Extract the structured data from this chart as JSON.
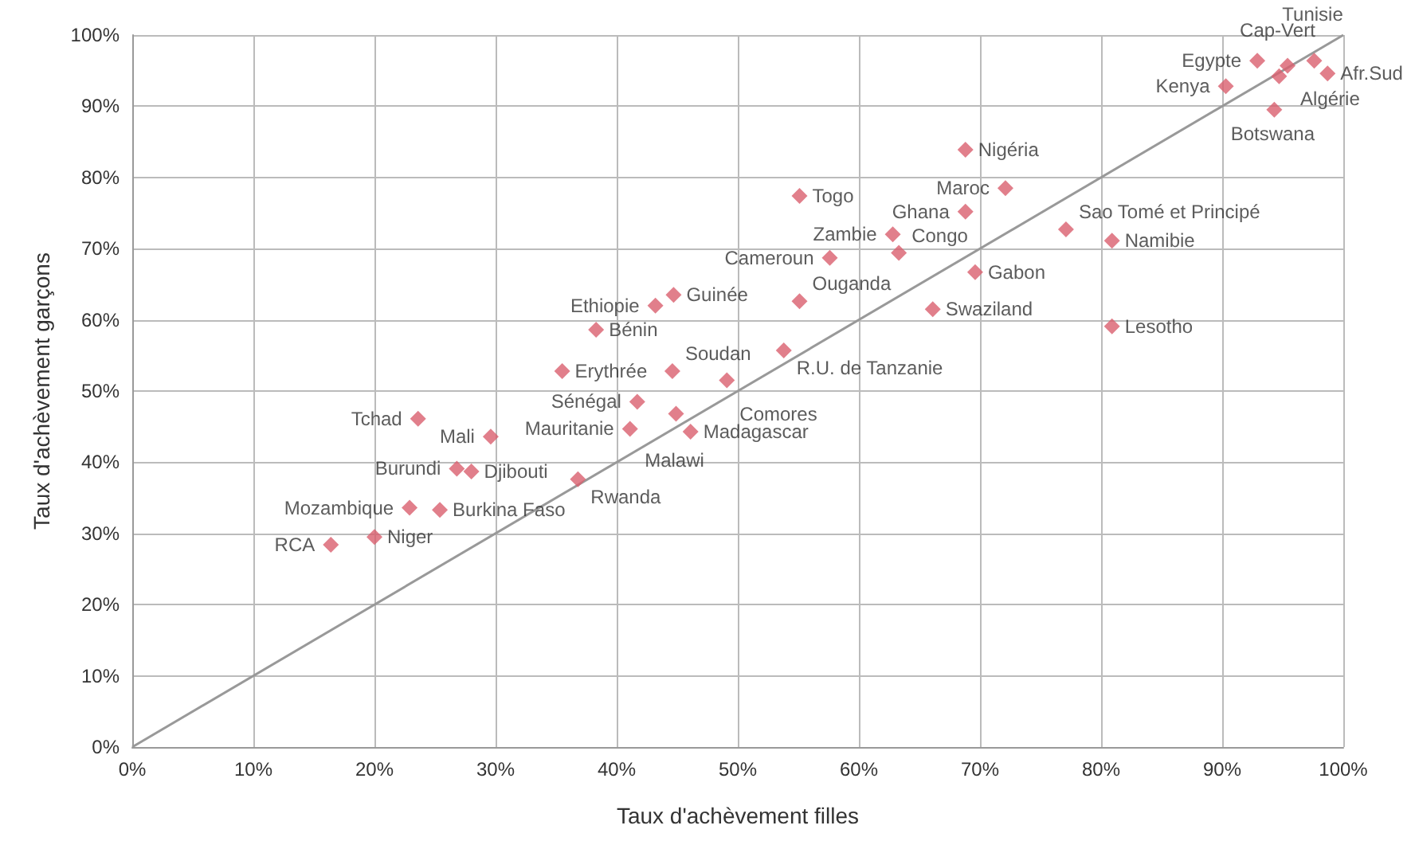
{
  "chart_data": {
    "type": "scatter",
    "xlabel": "Taux d'achèvement filles",
    "ylabel": "Taux d'achèvement garçons",
    "xlim": [
      0,
      100
    ],
    "ylim": [
      0,
      100
    ],
    "xticks": [
      {
        "value": 0,
        "label": "0%"
      },
      {
        "value": 10,
        "label": "10%"
      },
      {
        "value": 20,
        "label": "20%"
      },
      {
        "value": 30,
        "label": "30%"
      },
      {
        "value": 40,
        "label": "40%"
      },
      {
        "value": 50,
        "label": "50%"
      },
      {
        "value": 60,
        "label": "60%"
      },
      {
        "value": 70,
        "label": "70%"
      },
      {
        "value": 80,
        "label": "80%"
      },
      {
        "value": 90,
        "label": "90%"
      },
      {
        "value": 100,
        "label": "100%"
      }
    ],
    "yticks": [
      {
        "value": 0,
        "label": "0%"
      },
      {
        "value": 10,
        "label": "10%"
      },
      {
        "value": 20,
        "label": "20%"
      },
      {
        "value": 30,
        "label": "30%"
      },
      {
        "value": 40,
        "label": "40%"
      },
      {
        "value": 50,
        "label": "50%"
      },
      {
        "value": 60,
        "label": "60%"
      },
      {
        "value": 70,
        "label": "70%"
      },
      {
        "value": 80,
        "label": "80%"
      },
      {
        "value": 90,
        "label": "90%"
      },
      {
        "value": 100,
        "label": "100%"
      }
    ],
    "grid": true,
    "series": [
      {
        "color": "#d95f6e",
        "marker": "diamond",
        "x": [
          97.6,
          92.9,
          95.4,
          98.7,
          94.7,
          90.3,
          94.3,
          68.8,
          72.1,
          55.1,
          68.8,
          62.8,
          77.1,
          80.9,
          63.3,
          57.6,
          69.6,
          44.7,
          43.2,
          55.1,
          38.3,
          66.1,
          80.9,
          35.5,
          44.6,
          53.8,
          49.1,
          41.7,
          41.1,
          44.9,
          46.1,
          23.6,
          29.6,
          26.8,
          28.0,
          36.8,
          22.9,
          25.4,
          20.0,
          16.4
        ],
        "values": [
          96.4,
          96.4,
          95.7,
          94.6,
          94.2,
          92.8,
          89.5,
          83.9,
          78.5,
          77.4,
          75.2,
          72.0,
          72.7,
          71.1,
          69.4,
          68.7,
          66.7,
          63.5,
          62.0,
          62.6,
          58.6,
          61.5,
          59.1,
          52.8,
          52.8,
          55.7,
          51.5,
          48.5,
          44.7,
          46.8,
          44.3,
          46.1,
          43.6,
          39.1,
          38.7,
          37.6,
          33.6,
          33.3,
          29.5,
          28.4
        ]
      },
      {
        "type": "line",
        "color": "#999999",
        "marker": "none",
        "x": [
          0,
          100
        ],
        "values": [
          0,
          100
        ]
      }
    ],
    "annotations": [
      {
        "text": "Tunisie",
        "x": 97.6,
        "y": 96.4
      },
      {
        "text": "Egypte",
        "x": 92.9,
        "y": 96.4
      },
      {
        "text": "Algérie",
        "x": 95.4,
        "y": 95.7
      },
      {
        "text": "Afr.Sud",
        "x": 98.7,
        "y": 94.6
      },
      {
        "text": "Cap-Vert",
        "x": 94.7,
        "y": 94.2
      },
      {
        "text": "Kenya",
        "x": 90.3,
        "y": 92.8
      },
      {
        "text": "Botswana",
        "x": 94.3,
        "y": 89.5
      },
      {
        "text": "Nigéria",
        "x": 68.8,
        "y": 83.9
      },
      {
        "text": "Maroc",
        "x": 72.1,
        "y": 78.5
      },
      {
        "text": "Togo",
        "x": 55.1,
        "y": 77.4
      },
      {
        "text": "Ghana",
        "x": 68.8,
        "y": 75.2
      },
      {
        "text": "Zambie",
        "x": 62.8,
        "y": 72.0
      },
      {
        "text": "Sao Tomé et Principé",
        "x": 77.1,
        "y": 72.7
      },
      {
        "text": "Namibie",
        "x": 80.9,
        "y": 71.1
      },
      {
        "text": "Congo",
        "x": 63.3,
        "y": 69.4
      },
      {
        "text": "Cameroun",
        "x": 57.6,
        "y": 68.7
      },
      {
        "text": "Gabon",
        "x": 69.6,
        "y": 66.7
      },
      {
        "text": "Guinée",
        "x": 44.7,
        "y": 63.5
      },
      {
        "text": "Ethiopie",
        "x": 43.2,
        "y": 62.0
      },
      {
        "text": "Ouganda",
        "x": 55.1,
        "y": 62.6
      },
      {
        "text": "Bénin",
        "x": 38.3,
        "y": 58.6
      },
      {
        "text": "Swaziland",
        "x": 66.1,
        "y": 61.5
      },
      {
        "text": "Lesotho",
        "x": 80.9,
        "y": 59.1
      },
      {
        "text": "Erythrée",
        "x": 35.5,
        "y": 52.8
      },
      {
        "text": "Soudan",
        "x": 44.6,
        "y": 52.8
      },
      {
        "text": "R.U. de Tanzanie",
        "x": 53.8,
        "y": 55.7
      },
      {
        "text": "Comores",
        "x": 49.1,
        "y": 51.5
      },
      {
        "text": "Sénégal",
        "x": 41.7,
        "y": 48.5
      },
      {
        "text": "Mauritanie",
        "x": 41.1,
        "y": 44.7
      },
      {
        "text": "Malawi",
        "x": 44.9,
        "y": 46.8
      },
      {
        "text": "Madagascar",
        "x": 46.1,
        "y": 44.3
      },
      {
        "text": "Tchad",
        "x": 23.6,
        "y": 46.1
      },
      {
        "text": "Mali",
        "x": 29.6,
        "y": 43.6
      },
      {
        "text": "Burundi",
        "x": 26.8,
        "y": 39.1
      },
      {
        "text": "Djibouti",
        "x": 28.0,
        "y": 38.7
      },
      {
        "text": "Rwanda",
        "x": 36.8,
        "y": 37.6
      },
      {
        "text": "Mozambique",
        "x": 22.9,
        "y": 33.6
      },
      {
        "text": "Burkina Faso",
        "x": 25.4,
        "y": 33.3
      },
      {
        "text": "Niger",
        "x": 20.0,
        "y": 29.5
      },
      {
        "text": "RCA",
        "x": 16.4,
        "y": 28.4
      }
    ]
  }
}
